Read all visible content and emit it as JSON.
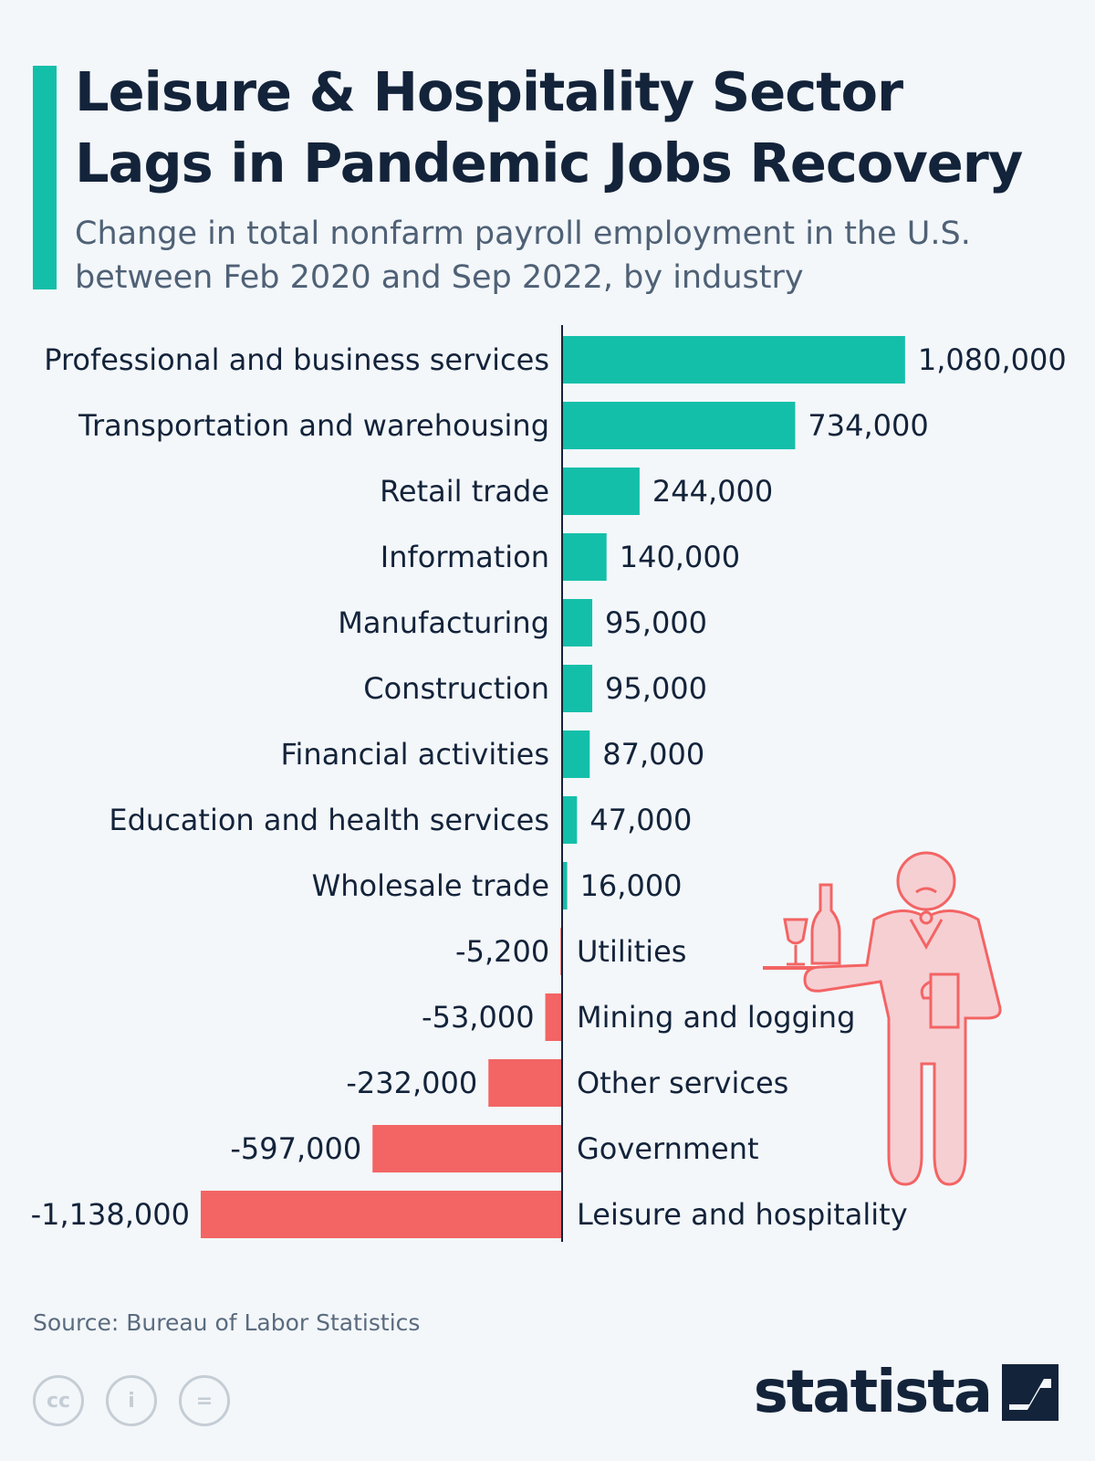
{
  "header": {
    "title_line1": "Leisure & Hospitality Sector",
    "title_line2": "Lags in Pandemic Jobs Recovery",
    "subtitle_line1": "Change in total nonfarm payroll employment in the U.S.",
    "subtitle_line2": "between Feb 2020 and Sep 2022, by industry"
  },
  "chart_data": {
    "type": "bar",
    "orientation": "horizontal",
    "categories": [
      "Professional and business services",
      "Transportation and warehousing",
      "Retail trade",
      "Information",
      "Manufacturing",
      "Construction",
      "Financial activities",
      "Education and health services",
      "Wholesale trade",
      "Utilities",
      "Mining and logging",
      "Other services",
      "Government",
      "Leisure and hospitality"
    ],
    "values": [
      1080000,
      734000,
      244000,
      140000,
      95000,
      95000,
      87000,
      47000,
      16000,
      -5200,
      -53000,
      -232000,
      -597000,
      -1138000
    ],
    "value_labels": [
      "1,080,000",
      "734,000",
      "244,000",
      "140,000",
      "95,000",
      "95,000",
      "87,000",
      "47,000",
      "16,000",
      "-5,200",
      "-53,000",
      "-232,000",
      "-597,000",
      "-1,138,000"
    ],
    "xlim": [
      -1138000,
      1080000
    ],
    "grid": false,
    "colors": {
      "positive": "#14bfa9",
      "negative": "#f36464",
      "axis": "#13233a",
      "text": "#13233a"
    }
  },
  "illustration": {
    "icon": "waiter-icon",
    "color": "#f36464",
    "fill": "#f6cfd3"
  },
  "footer": {
    "source": "Source: Bureau of Labor Statistics",
    "brand": "statista",
    "license_icons": [
      "cc-icon",
      "by-icon",
      "nd-icon"
    ]
  }
}
